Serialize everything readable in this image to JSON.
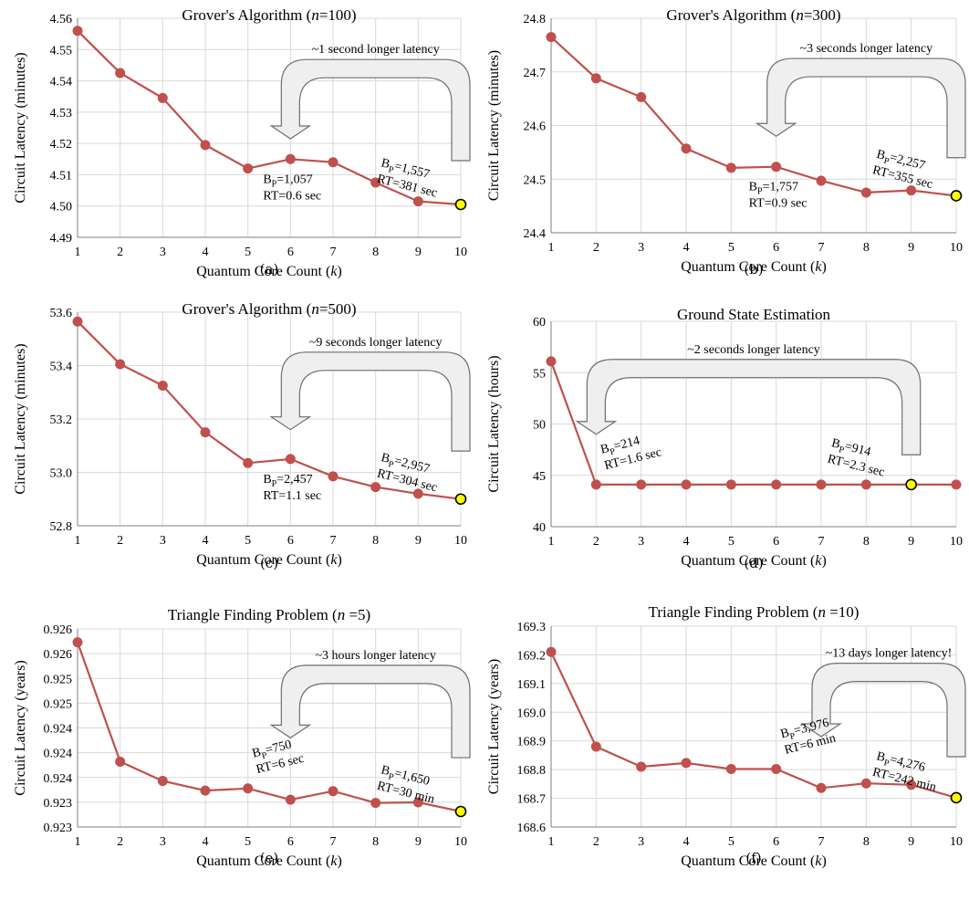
{
  "colors": {
    "series": "#c0504d",
    "highlight": "#ffff00",
    "grid": "#d9d9d9",
    "arrow_fill": "#efefef"
  },
  "chart_data": [
    {
      "type": "line",
      "title": "Grover's Algorithm (n=100)",
      "title_parts": [
        "Grover's Algorithm (",
        "n",
        "=100)"
      ],
      "xlabel_parts": [
        "Quantum Core Count (",
        "k",
        ")"
      ],
      "ylabel": "Circuit Latency (minutes)",
      "x": [
        1,
        2,
        3,
        4,
        5,
        6,
        7,
        8,
        9,
        10
      ],
      "y": [
        4.556,
        4.5425,
        4.5345,
        4.5195,
        4.512,
        4.515,
        4.514,
        4.5075,
        4.5015,
        4.5005
      ],
      "xlim": [
        1,
        10
      ],
      "ylim": [
        4.49,
        4.56
      ],
      "yticks": [
        "4.49",
        "4.50",
        "4.51",
        "4.52",
        "4.53",
        "4.54",
        "4.55",
        "4.56"
      ],
      "grid": true,
      "highlight_x": 10,
      "latency_note": "~1 second longer latency",
      "arrow_from_x": 10,
      "arrow_to_x": 6,
      "annotations": [
        {
          "at_x": 6,
          "bp": "1,057",
          "rt": "RT=0.6 sec",
          "rotated": false
        },
        {
          "at_x": 10,
          "bp": "1,557",
          "rt": "RT=381 sec",
          "rotated": true
        }
      ],
      "caption": "(a)"
    },
    {
      "type": "line",
      "title": "Grover's Algorithm (n=300)",
      "title_parts": [
        "Grover's Algorithm (",
        "n",
        "=300)"
      ],
      "xlabel_parts": [
        "Quantum Core Count (",
        "k",
        ")"
      ],
      "ylabel": "Circuit Latency (minutes)",
      "x": [
        1,
        2,
        3,
        4,
        5,
        6,
        7,
        8,
        9,
        10
      ],
      "y": [
        24.765,
        24.688,
        24.653,
        24.557,
        24.521,
        24.523,
        24.497,
        24.475,
        24.479,
        24.469
      ],
      "xlim": [
        1,
        10
      ],
      "ylim": [
        24.4,
        24.8
      ],
      "yticks": [
        "24.4",
        "24.5",
        "24.6",
        "24.7",
        "24.8"
      ],
      "grid": true,
      "highlight_x": 10,
      "latency_note": "~3 seconds longer latency",
      "arrow_from_x": 10,
      "arrow_to_x": 6,
      "annotations": [
        {
          "at_x": 6,
          "bp": "1,757",
          "rt": "RT=0.9 sec",
          "rotated": false
        },
        {
          "at_x": 10,
          "bp": "2,257",
          "rt": "RT=355 sec",
          "rotated": true
        }
      ],
      "caption": "(b)"
    },
    {
      "type": "line",
      "title": "Grover's Algorithm (n=500)",
      "title_parts": [
        "Grover's Algorithm (",
        "n",
        "=500)"
      ],
      "xlabel_parts": [
        "Quantum Core Count (",
        "k",
        ")"
      ],
      "ylabel": "Circuit Latency (minutes)",
      "x": [
        1,
        2,
        3,
        4,
        5,
        6,
        7,
        8,
        9,
        10
      ],
      "y": [
        53.565,
        53.405,
        53.325,
        53.15,
        53.035,
        53.05,
        52.985,
        52.945,
        52.92,
        52.9
      ],
      "xlim": [
        1,
        10
      ],
      "ylim": [
        52.8,
        53.6
      ],
      "yticks": [
        "52.8",
        "53.0",
        "53.2",
        "53.4",
        "53.6"
      ],
      "grid": true,
      "highlight_x": 10,
      "latency_note": "~9 seconds longer latency",
      "arrow_from_x": 10,
      "arrow_to_x": 6,
      "annotations": [
        {
          "at_x": 6,
          "bp": "2,457",
          "rt": "RT=1.1 sec",
          "rotated": false
        },
        {
          "at_x": 10,
          "bp": "2,957",
          "rt": "RT=304 sec",
          "rotated": true
        }
      ],
      "caption": "(c)"
    },
    {
      "type": "line",
      "title": "Ground State Estimation",
      "title_parts": [
        "Ground State Estimation",
        "",
        ""
      ],
      "xlabel_parts": [
        "Quantum Core Count (",
        "k",
        ")"
      ],
      "ylabel": "Circuit Latency (hours)",
      "x": [
        1,
        2,
        3,
        4,
        5,
        6,
        7,
        8,
        9,
        10
      ],
      "y": [
        56.1,
        44.1,
        44.1,
        44.1,
        44.1,
        44.1,
        44.1,
        44.1,
        44.1,
        44.1
      ],
      "xlim": [
        1,
        10
      ],
      "ylim": [
        40,
        60
      ],
      "yticks": [
        "40",
        "45",
        "50",
        "55",
        "60"
      ],
      "grid": true,
      "highlight_x": 9,
      "latency_note": "~2 seconds longer latency",
      "arrow_from_x": 9,
      "arrow_to_x": 2,
      "annotations": [
        {
          "at_x": 2,
          "bp": "214",
          "rt": "RT=1.6 sec",
          "rotated": true
        },
        {
          "at_x": 9,
          "bp": "914",
          "rt": "RT=2.3 sec",
          "rotated": true
        }
      ],
      "caption": "(d)"
    },
    {
      "type": "line",
      "title": "Triangle Finding Problem (n =5)",
      "title_parts": [
        "Triangle Finding Problem (",
        "n",
        " =5)"
      ],
      "xlabel_parts": [
        "Quantum Core Count (",
        "k",
        ")"
      ],
      "ylabel": "Circuit Latency (years)",
      "x": [
        1,
        2,
        3,
        4,
        5,
        6,
        7,
        8,
        9,
        10
      ],
      "y": [
        0.92625,
        0.92402,
        0.92366,
        0.92348,
        0.92352,
        0.92331,
        0.92347,
        0.92325,
        0.92326,
        0.92309
      ],
      "xlim": [
        1,
        10
      ],
      "ylim": [
        0.9228,
        0.9265
      ],
      "yticks": [
        "0.923",
        "0.923",
        "0.924",
        "0.924",
        "0.924",
        "0.925",
        "0.925",
        "0.926",
        "0.926"
      ],
      "grid": true,
      "highlight_x": 10,
      "latency_note": "~3 hours longer latency",
      "arrow_from_x": 10,
      "arrow_to_x": 6,
      "annotations": [
        {
          "at_x": 5,
          "bp": "750",
          "rt": "RT=6 sec",
          "rotated": true
        },
        {
          "at_x": 10,
          "bp": "1,650",
          "rt": "RT=30 min",
          "rotated": true
        }
      ],
      "caption": "(e)"
    },
    {
      "type": "line",
      "title": "Triangle Finding Problem (n =10)",
      "title_parts": [
        "Triangle Finding Problem (",
        "n",
        " =10)"
      ],
      "xlabel_parts": [
        "Quantum Core Count (",
        "k",
        ")"
      ],
      "ylabel": "Circuit Latency (years)",
      "x": [
        1,
        2,
        3,
        4,
        5,
        6,
        7,
        8,
        9,
        10
      ],
      "y": [
        169.21,
        168.88,
        168.81,
        168.823,
        168.802,
        168.802,
        168.736,
        168.752,
        168.747,
        168.702
      ],
      "xlim": [
        1,
        10
      ],
      "ylim": [
        168.6,
        169.3
      ],
      "yticks": [
        "168.6",
        "168.7",
        "168.8",
        "168.9",
        "169.0",
        "169.1",
        "169.2",
        "169.3"
      ],
      "grid": true,
      "highlight_x": 10,
      "latency_note": "~13 days longer latency!",
      "arrow_from_x": 10,
      "arrow_to_x": 7,
      "annotations": [
        {
          "at_x": 6,
          "bp": "3,976",
          "rt": "RT=6 min",
          "rotated": true
        },
        {
          "at_x": 10,
          "bp": "4,276",
          "rt": "RT=242 min",
          "rotated": true
        }
      ],
      "caption": "(f)"
    }
  ]
}
